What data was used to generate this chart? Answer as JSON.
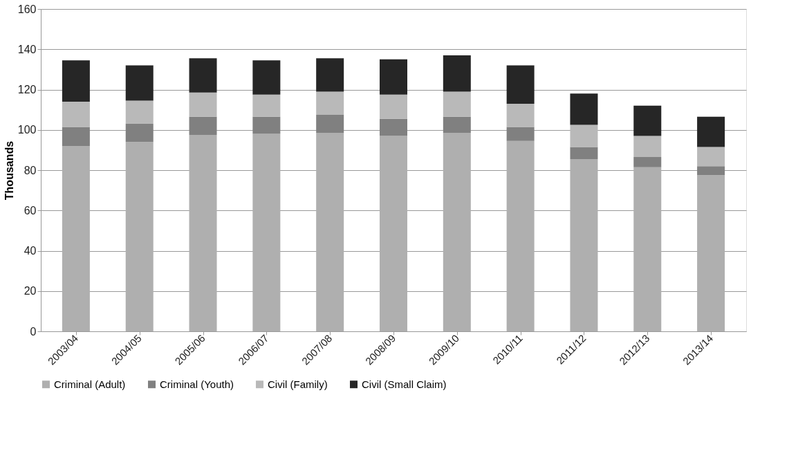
{
  "chart_data": {
    "type": "bar",
    "stacked": true,
    "ylabel": "Thousands",
    "categories": [
      "2003/04",
      "2004/05",
      "2005/06",
      "2006/07",
      "2007/08",
      "2008/09",
      "2009/10",
      "2010/11",
      "2011/12",
      "2012/13",
      "2013/14"
    ],
    "series": [
      {
        "name": "Criminal (Adult)",
        "color": "#afafaf",
        "values": [
          92,
          94,
          97.5,
          98,
          98.5,
          97,
          98.5,
          94.5,
          85.5,
          81.5,
          77.5
        ]
      },
      {
        "name": "Criminal (Youth)",
        "color": "#808080",
        "values": [
          9.5,
          9,
          9,
          8.5,
          9,
          8.5,
          8,
          7,
          6,
          5,
          4.5
        ]
      },
      {
        "name": "Civil (Family)",
        "color": "#b9b9b9",
        "values": [
          12.5,
          11.5,
          12,
          11,
          11.5,
          12,
          12.5,
          11.5,
          11,
          10.5,
          9.5
        ]
      },
      {
        "name": "Civil (Small Claim)",
        "color": "#262626",
        "values": [
          20.5,
          17.5,
          17,
          17,
          16.5,
          17.5,
          18,
          19,
          15.5,
          15,
          15
        ]
      }
    ],
    "ylim": [
      0,
      160
    ],
    "yticks": [
      0,
      20,
      40,
      60,
      80,
      100,
      120,
      140,
      160
    ],
    "grid": "y",
    "legend": "bottom"
  }
}
